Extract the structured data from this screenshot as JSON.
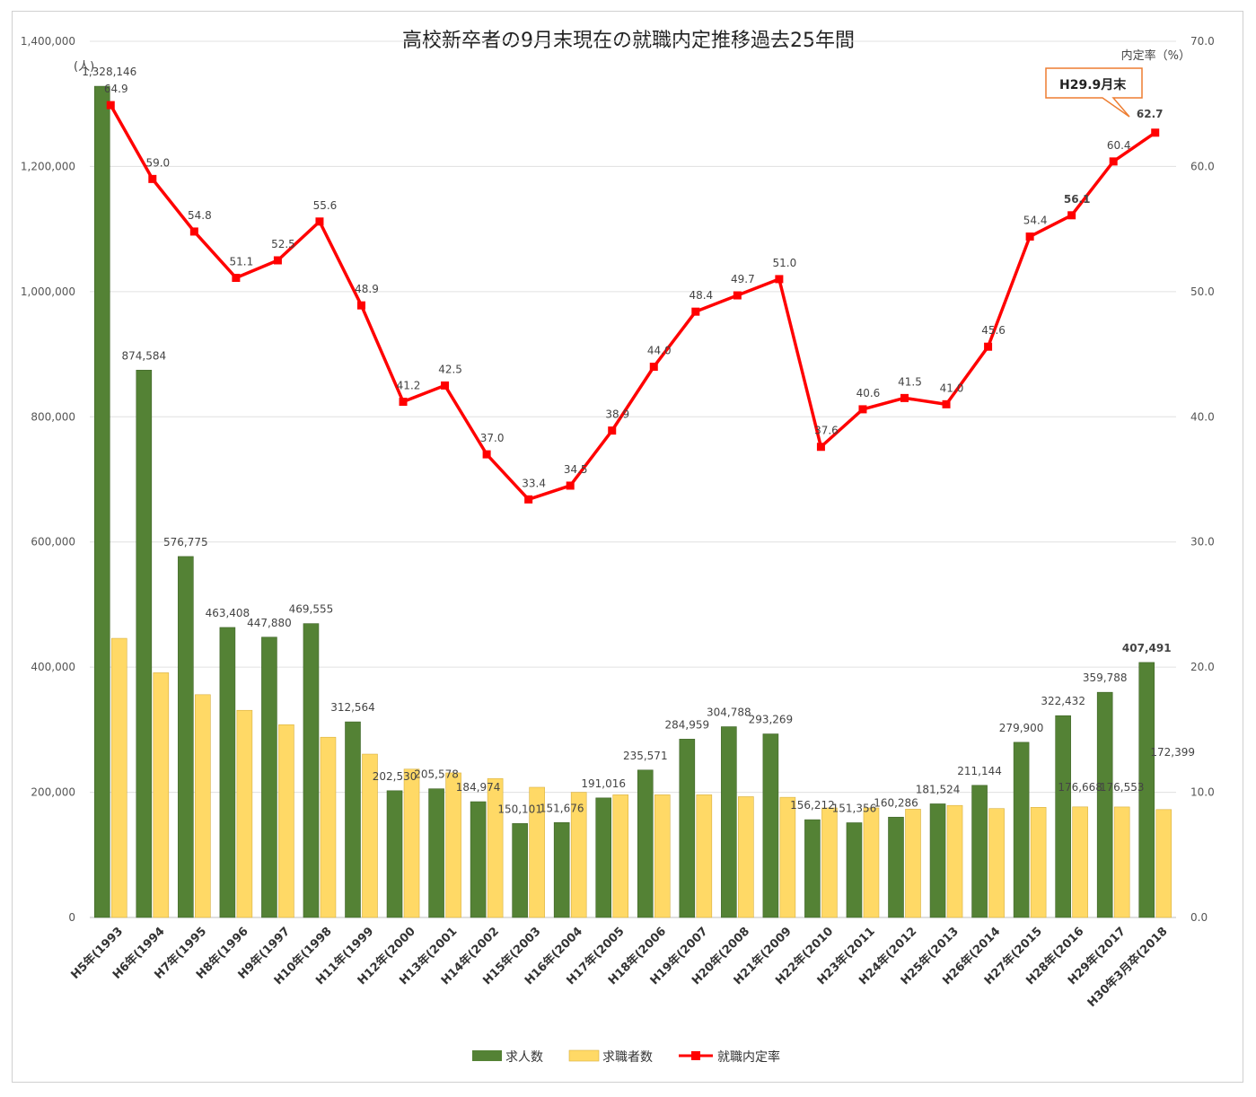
{
  "chart_data": {
    "type": "bar",
    "title": "高校新卒者の9月末現在の就職内定推移過去25年間",
    "y_left_unit": "(人)",
    "y_right_unit": "内定率（%）",
    "y_left_ticks": [
      "0",
      "200,000",
      "400,000",
      "600,000",
      "800,000",
      "1,000,000",
      "1,200,000",
      "1,400,000"
    ],
    "y_right_ticks": [
      "0.0",
      "10.0",
      "20.0",
      "30.0",
      "40.0",
      "50.0",
      "60.0",
      "70.0"
    ],
    "ylim_left": [
      0,
      1400000
    ],
    "ylim_right": [
      0,
      70
    ],
    "grid": true,
    "legend_position": "bottom",
    "categories": [
      "H5年(1993",
      "H6年(1994",
      "H7年(1995",
      "H8年(1996",
      "H9年(1997",
      "H10年(1998",
      "H11年(1999",
      "H12年(2000",
      "H13年(2001",
      "H14年(2002",
      "H15年(2003",
      "H16年(2004",
      "H17年(2005",
      "H18年(2006",
      "H19年(2007",
      "H20年(2008",
      "H21年(2009",
      "H22年(2010",
      "H23年(2011",
      "H24年(2012",
      "H25年(2013",
      "H26年(2014",
      "H27年(2015",
      "H28年(2016",
      "H29年(2017",
      "H30年3月卒(2018"
    ],
    "series": [
      {
        "name": "求人数",
        "kind": "bar",
        "axis": "left",
        "color": "#548235",
        "values": [
          1328146,
          874584,
          576775,
          463408,
          447880,
          469555,
          312564,
          202530,
          205578,
          184974,
          150101,
          151676,
          191016,
          235571,
          284959,
          304788,
          293269,
          156212,
          151356,
          160286,
          181524,
          211144,
          279900,
          322432,
          359788,
          407491
        ],
        "labels": [
          "1,328,146",
          "874,584",
          "576,775",
          "463,408",
          "447,880",
          "469,555",
          "312,564",
          "202,530",
          "205,578",
          "184,974",
          "150,101",
          "151,676",
          "191,016",
          "235,571",
          "284,959",
          "304,788",
          "293,269",
          "156,212",
          "151,356",
          "160,286",
          "181,524",
          "211,144",
          "279,900",
          "322,432",
          "359,788",
          "407,491"
        ]
      },
      {
        "name": "求職者数",
        "kind": "bar",
        "axis": "left",
        "color": "#ffd966",
        "values": [
          446000,
          391000,
          356000,
          331000,
          308000,
          288000,
          261000,
          237000,
          231000,
          222000,
          208000,
          200000,
          196000,
          196000,
          196000,
          193000,
          192000,
          175000,
          175000,
          173000,
          179000,
          174000,
          176000,
          176668,
          176553,
          172399
        ],
        "labels": [
          "",
          "",
          "",
          "",
          "",
          "",
          "",
          "",
          "",
          "",
          "",
          "",
          "",
          "",
          "",
          "",
          "",
          "",
          "",
          "",
          "",
          "",
          "",
          "176,668",
          "176,553",
          "172,399"
        ]
      },
      {
        "name": "就職内定率",
        "kind": "line",
        "axis": "right",
        "color": "#ff0000",
        "values": [
          64.9,
          59.0,
          54.8,
          51.1,
          52.5,
          55.6,
          48.9,
          41.2,
          42.5,
          37.0,
          33.4,
          34.5,
          38.9,
          44.0,
          48.4,
          49.7,
          51.0,
          37.6,
          40.6,
          41.5,
          41.0,
          45.6,
          54.4,
          56.1,
          60.4,
          62.7
        ],
        "labels": [
          "64.9",
          "59.0",
          "54.8",
          "51.1",
          "52.5",
          "55.6",
          "48.9",
          "41.2",
          "42.5",
          "37.0",
          "33.4",
          "34.5",
          "38.9",
          "44.0",
          "48.4",
          "49.7",
          "51.0",
          "37.6",
          "40.6",
          "41.5",
          "41.0",
          "45.6",
          "54.4",
          "56.1",
          "60.4",
          "62.7"
        ]
      }
    ],
    "annotation": {
      "text": "H29.9月末",
      "border_color": "#ed7d31",
      "highlight_color": "#c00000"
    }
  }
}
